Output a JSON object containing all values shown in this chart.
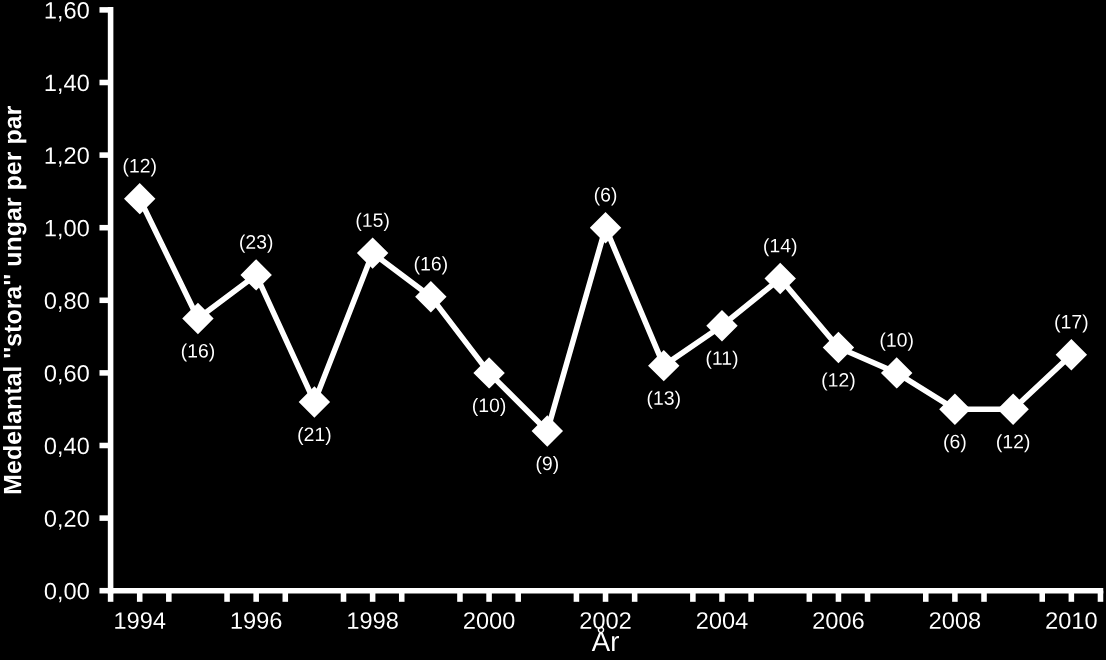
{
  "chart_data": {
    "type": "line",
    "xlabel": "År",
    "ylabel": "Medelantal ''stora'' ungar per par",
    "x": [
      1994,
      1995,
      1996,
      1997,
      1998,
      1999,
      2000,
      2001,
      2002,
      2003,
      2004,
      2005,
      2006,
      2007,
      2008,
      2009,
      2010
    ],
    "series": [
      {
        "color": "#ffffff",
        "values": [
          1.08,
          0.75,
          0.87,
          0.52,
          0.93,
          0.81,
          0.6,
          0.44,
          1.0,
          0.62,
          0.73,
          0.86,
          0.67,
          0.6,
          0.5,
          0.5,
          0.65
        ]
      }
    ],
    "marker": "diamond",
    "line_style": "solid",
    "grid": false,
    "xlim": [
      1993.5,
      2010.5
    ],
    "xticks": [
      {
        "value": 1993.5,
        "label": null
      },
      {
        "value": 1994,
        "label": "1994"
      },
      {
        "value": 1994.5,
        "label": null
      },
      {
        "value": 1995.5,
        "label": null
      },
      {
        "value": 1996,
        "label": "1996"
      },
      {
        "value": 1996.5,
        "label": null
      },
      {
        "value": 1997.5,
        "label": null
      },
      {
        "value": 1998,
        "label": "1998"
      },
      {
        "value": 1998.5,
        "label": null
      },
      {
        "value": 1999.5,
        "label": null
      },
      {
        "value": 2000,
        "label": "2000"
      },
      {
        "value": 2000.5,
        "label": null
      },
      {
        "value": 2001.5,
        "label": null
      },
      {
        "value": 2002,
        "label": "2002"
      },
      {
        "value": 2002.5,
        "label": null
      },
      {
        "value": 2003.5,
        "label": null
      },
      {
        "value": 2004,
        "label": "2004"
      },
      {
        "value": 2004.5,
        "label": null
      },
      {
        "value": 2005.5,
        "label": null
      },
      {
        "value": 2006,
        "label": "2006"
      },
      {
        "value": 2006.5,
        "label": null
      },
      {
        "value": 2007.5,
        "label": null
      },
      {
        "value": 2008,
        "label": "2008"
      },
      {
        "value": 2008.5,
        "label": null
      },
      {
        "value": 2009.5,
        "label": null
      },
      {
        "value": 2010,
        "label": "2010"
      },
      {
        "value": 2010.5,
        "label": null
      }
    ],
    "ylim": [
      0,
      1.6
    ],
    "yticks": [
      {
        "value": 0,
        "label": "0,00"
      },
      {
        "value": 0.2,
        "label": "0,20"
      },
      {
        "value": 0.4,
        "label": "0,40"
      },
      {
        "value": 0.6,
        "label": "0,60"
      },
      {
        "value": 0.8,
        "label": "0,80"
      },
      {
        "value": 1.0,
        "label": "1,00"
      },
      {
        "value": 1.2,
        "label": "1,20"
      },
      {
        "value": 1.4,
        "label": "1,40"
      },
      {
        "value": 1.6,
        "label": "1,60"
      }
    ],
    "annotations": [
      {
        "text": "(12)",
        "x": 1994,
        "y": 1.08
      },
      {
        "text": "(16)",
        "x": 1995,
        "y": 0.75
      },
      {
        "text": "(23)",
        "x": 1996,
        "y": 0.87
      },
      {
        "text": "(21)",
        "x": 1997,
        "y": 0.52
      },
      {
        "text": "(15)",
        "x": 1998,
        "y": 0.93
      },
      {
        "text": "(16)",
        "x": 1999,
        "y": 0.81
      },
      {
        "text": "(10)",
        "x": 2000,
        "y": 0.6
      },
      {
        "text": "(9)",
        "x": 2001,
        "y": 0.44
      },
      {
        "text": "(6)",
        "x": 2002,
        "y": 1.0
      },
      {
        "text": "(13)",
        "x": 2003,
        "y": 0.62
      },
      {
        "text": "(11)",
        "x": 2004,
        "y": 0.73
      },
      {
        "text": "(14)",
        "x": 2005,
        "y": 0.86
      },
      {
        "text": "(12)",
        "x": 2006,
        "y": 0.67
      },
      {
        "text": "(10)",
        "x": 2007,
        "y": 0.6
      },
      {
        "text": "(6)",
        "x": 2008,
        "y": 0.5
      },
      {
        "text": "(12)",
        "x": 2009,
        "y": 0.5
      },
      {
        "text": "(17)",
        "x": 2010,
        "y": 0.65
      }
    ]
  }
}
